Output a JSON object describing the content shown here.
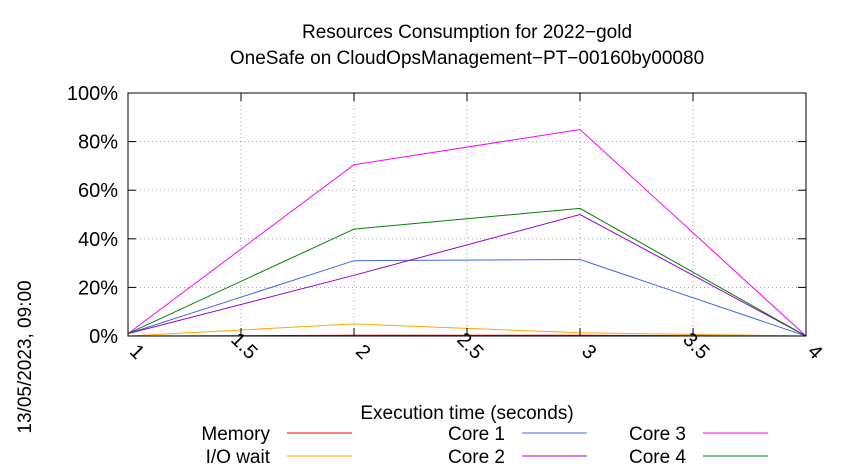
{
  "chart_data": {
    "type": "line",
    "title": "Resources Consumption for 2022−gold",
    "subtitle": "OneSafe on CloudOpsManagement−PT−00160by00080",
    "xlabel": "Execution time (seconds)",
    "ylabel": "",
    "side_label": "13/05/2023, 09:00",
    "xlim": [
      1,
      4
    ],
    "ylim": [
      0,
      100
    ],
    "x_ticks": [
      "1",
      "1.5",
      "2",
      "2.5",
      "3",
      "3.5",
      "4"
    ],
    "y_ticks": [
      "0%",
      "20%",
      "40%",
      "60%",
      "80%",
      "100%"
    ],
    "grid": true,
    "legend_position": "bottom",
    "series": [
      {
        "name": "Memory",
        "color": "#ff0000",
        "x": [
          1,
          2,
          3,
          4
        ],
        "y": [
          0,
          0.3,
          0.3,
          0
        ]
      },
      {
        "name": "I/O wait",
        "color": "#ffa500",
        "x": [
          1,
          2,
          3,
          4
        ],
        "y": [
          0,
          5,
          1.3,
          0
        ]
      },
      {
        "name": "Core 1",
        "color": "#4169e1",
        "x": [
          1,
          2,
          3,
          4
        ],
        "y": [
          1,
          31,
          31.5,
          0
        ]
      },
      {
        "name": "Core 2",
        "color": "#9400d3",
        "x": [
          1,
          2,
          3,
          4
        ],
        "y": [
          1,
          25,
          50,
          0
        ]
      },
      {
        "name": "Core 3",
        "color": "#ff00ff",
        "x": [
          1,
          2,
          3,
          4
        ],
        "y": [
          1,
          70.5,
          85,
          0
        ]
      },
      {
        "name": "Core 4",
        "color": "#008000",
        "x": [
          1,
          2,
          3,
          4
        ],
        "y": [
          1,
          44,
          52.5,
          0
        ]
      }
    ]
  }
}
